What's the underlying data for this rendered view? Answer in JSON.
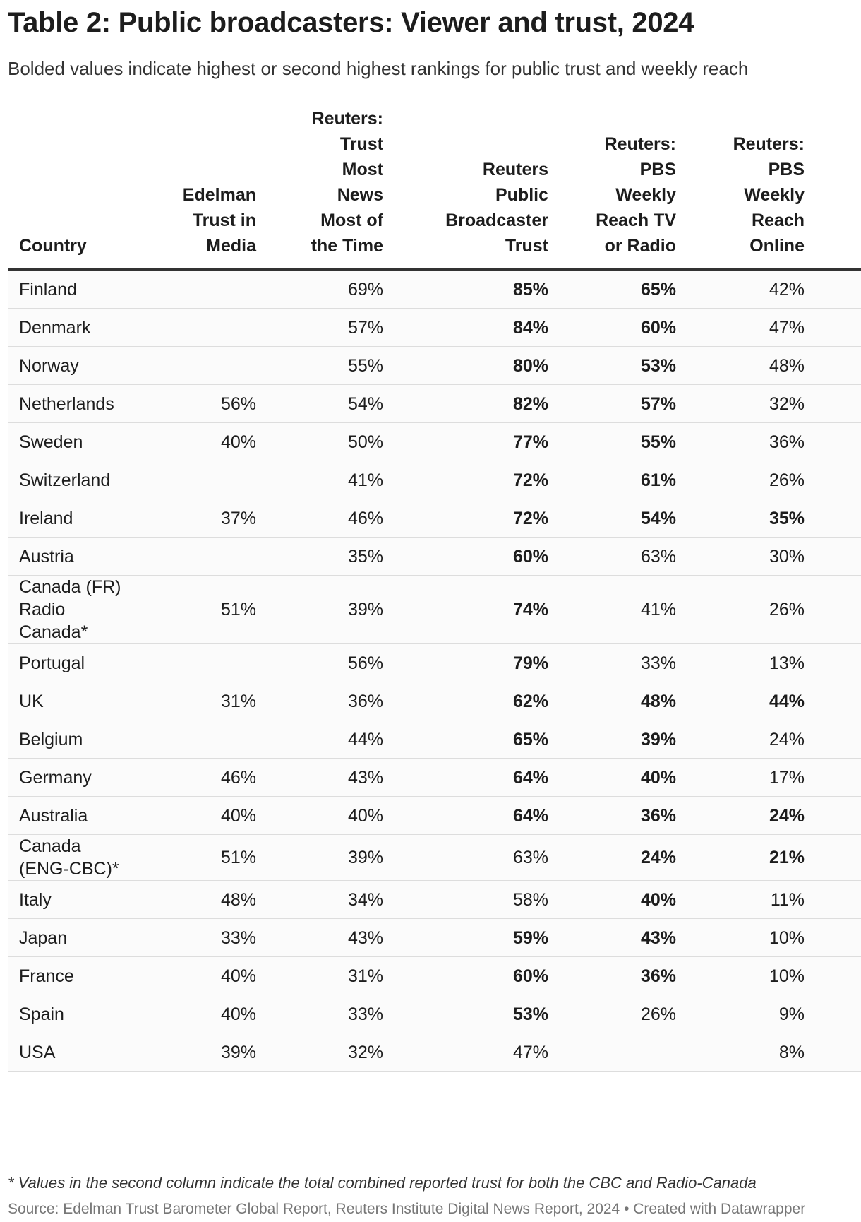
{
  "header": {
    "title": "Table 2: Public broadcasters: Viewer and trust, 2024",
    "subtitle": "Bolded values indicate highest or second highest rankings for public trust and weekly reach"
  },
  "table": {
    "columns": [
      "Country",
      "Edelman Trust in Media",
      "Reuters: Trust Most News Most of the Time",
      "Reuters Public Broadcaster Trust",
      "Reuters: PBS Weekly Reach TV or Radio",
      "Reuters: PBS Weekly Reach Online"
    ],
    "rows": [
      {
        "cells": [
          "Finland",
          null,
          "69%",
          "85%",
          "65%",
          "42%"
        ],
        "bold": [
          3,
          4
        ]
      },
      {
        "cells": [
          "Denmark",
          null,
          "57%",
          "84%",
          "60%",
          "47%"
        ],
        "bold": [
          3,
          4
        ]
      },
      {
        "cells": [
          "Norway",
          null,
          "55%",
          "80%",
          "53%",
          "48%"
        ],
        "bold": [
          3,
          4
        ]
      },
      {
        "cells": [
          "Netherlands",
          "56%",
          "54%",
          "82%",
          "57%",
          "32%"
        ],
        "bold": [
          3,
          4
        ]
      },
      {
        "cells": [
          "Sweden",
          "40%",
          "50%",
          "77%",
          "55%",
          "36%"
        ],
        "bold": [
          3,
          4
        ]
      },
      {
        "cells": [
          "Switzerland",
          null,
          "41%",
          "72%",
          "61%",
          "26%"
        ],
        "bold": [
          3,
          4
        ]
      },
      {
        "cells": [
          "Ireland",
          "37%",
          "46%",
          "72%",
          "54%",
          "35%"
        ],
        "bold": [
          3,
          4,
          5
        ]
      },
      {
        "cells": [
          "Austria",
          null,
          "35%",
          "60%",
          "63%",
          "30%"
        ],
        "bold": [
          3
        ]
      },
      {
        "cells": [
          "Canada (FR) Radio Canada*",
          "51%",
          "39%",
          "74%",
          "41%",
          "26%"
        ],
        "bold": [
          3
        ]
      },
      {
        "cells": [
          "Portugal",
          null,
          "56%",
          "79%",
          "33%",
          "13%"
        ],
        "bold": [
          3
        ]
      },
      {
        "cells": [
          "UK",
          "31%",
          "36%",
          "62%",
          "48%",
          "44%"
        ],
        "bold": [
          3,
          4,
          5
        ]
      },
      {
        "cells": [
          "Belgium",
          null,
          "44%",
          "65%",
          "39%",
          "24%"
        ],
        "bold": [
          3,
          4
        ]
      },
      {
        "cells": [
          "Germany",
          "46%",
          "43%",
          "64%",
          "40%",
          "17%"
        ],
        "bold": [
          3,
          4
        ]
      },
      {
        "cells": [
          "Australia",
          "40%",
          "40%",
          "64%",
          "36%",
          "24%"
        ],
        "bold": [
          3,
          4,
          5
        ]
      },
      {
        "cells": [
          "Canada (ENG-CBC)*",
          "51%",
          "39%",
          "63%",
          "24%",
          "21%"
        ],
        "bold": [
          4,
          5
        ]
      },
      {
        "cells": [
          "Italy",
          "48%",
          "34%",
          "58%",
          "40%",
          "11%"
        ],
        "bold": [
          4
        ]
      },
      {
        "cells": [
          "Japan",
          "33%",
          "43%",
          "59%",
          "43%",
          "10%"
        ],
        "bold": [
          3,
          4
        ]
      },
      {
        "cells": [
          "France",
          "40%",
          "31%",
          "60%",
          "36%",
          "10%"
        ],
        "bold": [
          3,
          4
        ]
      },
      {
        "cells": [
          "Spain",
          "40%",
          "33%",
          "53%",
          "26%",
          "9%"
        ],
        "bold": [
          3
        ]
      },
      {
        "cells": [
          "USA",
          "39%",
          "32%",
          "47%",
          null,
          "8%"
        ],
        "bold": []
      }
    ]
  },
  "footer": {
    "note": "*  Values in the second column indicate the total combined reported trust for both the CBC and Radio-Canada",
    "source": "Source: Edelman Trust Barometer Global Report, Reuters Institute Digital News Report, 2024 • Created with Datawrapper"
  }
}
